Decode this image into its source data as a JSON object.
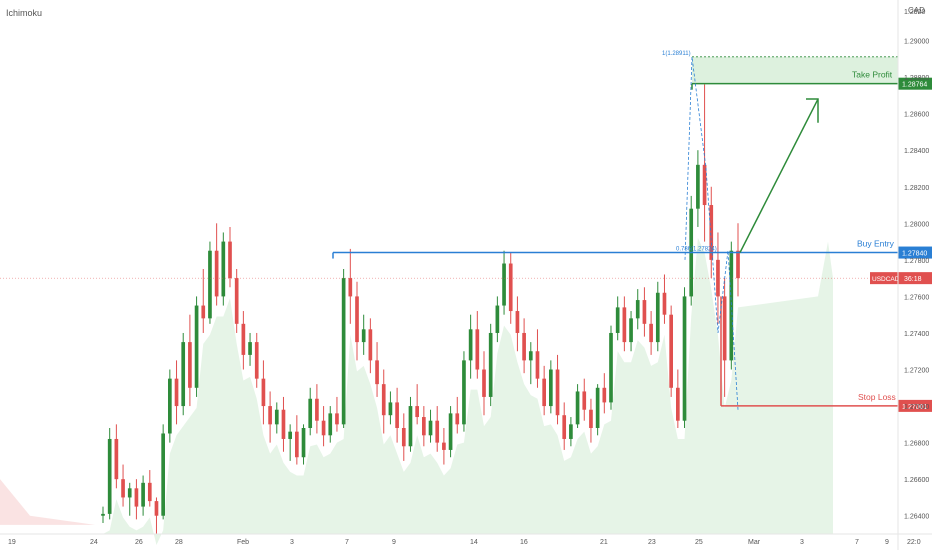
{
  "indicator": "Ichimoku",
  "currency": "CAD",
  "symbol_badge": "USDCAD",
  "countdown": "36:18",
  "colors": {
    "up": "#2e8b3a",
    "down": "#e0504f",
    "entry": "#2a7fd4",
    "take_profit": "#2e8b3a",
    "stop_loss": "#e0504f",
    "cloud_bull": "#c8e6c9",
    "cloud_bear": "#f6c8c8"
  },
  "annotations": {
    "take_profit_text": "Take Profit",
    "take_profit_price": "1.28764",
    "buy_entry_text": "Buy Entry",
    "buy_entry_price": "1.27840",
    "stop_loss_text": "Stop Loss",
    "stop_loss_price": "1.27001",
    "current_price": "USDCAD",
    "fib_top_label": "1(1.28911)",
    "fib_mid_label": "0.786(1.27824)"
  },
  "chart_data": {
    "type": "candlestick",
    "y_axis_ticks": [
      "1.29000",
      "1.28800",
      "1.28600",
      "1.28400",
      "1.28200",
      "1.28000",
      "1.27800",
      "1.27600",
      "1.27400",
      "1.27200",
      "1.27000",
      "1.26800",
      "1.26600",
      "1.26400"
    ],
    "ylim": [
      1.263,
      1.292
    ],
    "y_top_label": "1.2920",
    "x_axis_ticks": [
      "19",
      "24",
      "26",
      "28",
      "Feb",
      "3",
      "7",
      "9",
      "14",
      "16",
      "21",
      "23",
      "25",
      "Mar",
      "3",
      "7",
      "9",
      "22:0"
    ],
    "levels": {
      "take_profit": 1.28764,
      "buy_entry": 1.2784,
      "stop_loss": 1.27001,
      "current": 1.277,
      "fib_top": 1.28911
    },
    "candles": [
      [
        1.264,
        1.2645,
        1.2636,
        1.2641
      ],
      [
        1.2641,
        1.2688,
        1.2638,
        1.2682
      ],
      [
        1.2682,
        1.269,
        1.2655,
        1.266
      ],
      [
        1.266,
        1.2668,
        1.2645,
        1.265
      ],
      [
        1.265,
        1.2658,
        1.264,
        1.2655
      ],
      [
        1.2655,
        1.266,
        1.2638,
        1.2645
      ],
      [
        1.2645,
        1.2662,
        1.264,
        1.2658
      ],
      [
        1.2658,
        1.2665,
        1.2645,
        1.2648
      ],
      [
        1.2648,
        1.265,
        1.263,
        1.264
      ],
      [
        1.264,
        1.269,
        1.2638,
        1.2685
      ],
      [
        1.2685,
        1.272,
        1.268,
        1.2715
      ],
      [
        1.2715,
        1.2725,
        1.269,
        1.27
      ],
      [
        1.27,
        1.274,
        1.2695,
        1.2735
      ],
      [
        1.2735,
        1.275,
        1.27,
        1.271
      ],
      [
        1.271,
        1.276,
        1.2705,
        1.2755
      ],
      [
        1.2755,
        1.2775,
        1.274,
        1.2748
      ],
      [
        1.2748,
        1.279,
        1.2745,
        1.2785
      ],
      [
        1.2785,
        1.28,
        1.2755,
        1.276
      ],
      [
        1.276,
        1.2795,
        1.2755,
        1.279
      ],
      [
        1.279,
        1.2798,
        1.2765,
        1.277
      ],
      [
        1.277,
        1.2775,
        1.274,
        1.2745
      ],
      [
        1.2745,
        1.2752,
        1.272,
        1.2728
      ],
      [
        1.2728,
        1.274,
        1.2722,
        1.2735
      ],
      [
        1.2735,
        1.274,
        1.271,
        1.2715
      ],
      [
        1.2715,
        1.2725,
        1.269,
        1.27
      ],
      [
        1.27,
        1.2708,
        1.268,
        1.269
      ],
      [
        1.269,
        1.2702,
        1.2685,
        1.2698
      ],
      [
        1.2698,
        1.2705,
        1.2675,
        1.2682
      ],
      [
        1.2682,
        1.269,
        1.267,
        1.2686
      ],
      [
        1.2686,
        1.2695,
        1.2668,
        1.2672
      ],
      [
        1.2672,
        1.269,
        1.2668,
        1.2688
      ],
      [
        1.2688,
        1.271,
        1.2684,
        1.2704
      ],
      [
        1.2704,
        1.2712,
        1.2685,
        1.2692
      ],
      [
        1.2692,
        1.27,
        1.2678,
        1.2684
      ],
      [
        1.2684,
        1.27,
        1.268,
        1.2696
      ],
      [
        1.2696,
        1.2705,
        1.2686,
        1.269
      ],
      [
        1.269,
        1.2775,
        1.2688,
        1.277
      ],
      [
        1.277,
        1.2786,
        1.2745,
        1.276
      ],
      [
        1.276,
        1.2768,
        1.2725,
        1.2735
      ],
      [
        1.2735,
        1.275,
        1.2728,
        1.2742
      ],
      [
        1.2742,
        1.2748,
        1.2718,
        1.2725
      ],
      [
        1.2725,
        1.2735,
        1.2705,
        1.2712
      ],
      [
        1.2712,
        1.272,
        1.2685,
        1.2695
      ],
      [
        1.2695,
        1.2708,
        1.269,
        1.2702
      ],
      [
        1.2702,
        1.271,
        1.268,
        1.2688
      ],
      [
        1.2688,
        1.2696,
        1.267,
        1.2678
      ],
      [
        1.2678,
        1.2705,
        1.2675,
        1.27
      ],
      [
        1.27,
        1.2712,
        1.269,
        1.2694
      ],
      [
        1.2694,
        1.27,
        1.2678,
        1.2684
      ],
      [
        1.2684,
        1.2698,
        1.268,
        1.2692
      ],
      [
        1.2692,
        1.27,
        1.2675,
        1.268
      ],
      [
        1.268,
        1.2688,
        1.2668,
        1.2676
      ],
      [
        1.2676,
        1.27,
        1.2672,
        1.2696
      ],
      [
        1.2696,
        1.2705,
        1.2685,
        1.269
      ],
      [
        1.269,
        1.273,
        1.2686,
        1.2725
      ],
      [
        1.2725,
        1.275,
        1.2715,
        1.2742
      ],
      [
        1.2742,
        1.2752,
        1.2715,
        1.272
      ],
      [
        1.272,
        1.273,
        1.2695,
        1.2705
      ],
      [
        1.2705,
        1.2745,
        1.27,
        1.274
      ],
      [
        1.274,
        1.276,
        1.2735,
        1.2755
      ],
      [
        1.2755,
        1.2785,
        1.275,
        1.2778
      ],
      [
        1.2778,
        1.2784,
        1.2745,
        1.2752
      ],
      [
        1.2752,
        1.276,
        1.273,
        1.274
      ],
      [
        1.274,
        1.2748,
        1.2718,
        1.2725
      ],
      [
        1.2725,
        1.2735,
        1.2712,
        1.273
      ],
      [
        1.273,
        1.2742,
        1.271,
        1.2715
      ],
      [
        1.2715,
        1.2722,
        1.2695,
        1.27
      ],
      [
        1.27,
        1.2725,
        1.2696,
        1.272
      ],
      [
        1.272,
        1.2728,
        1.269,
        1.2695
      ],
      [
        1.2695,
        1.2702,
        1.2676,
        1.2682
      ],
      [
        1.2682,
        1.2694,
        1.2678,
        1.269
      ],
      [
        1.269,
        1.2712,
        1.2688,
        1.2708
      ],
      [
        1.2708,
        1.2715,
        1.2692,
        1.2698
      ],
      [
        1.2698,
        1.2704,
        1.268,
        1.2688
      ],
      [
        1.2688,
        1.2712,
        1.2684,
        1.271
      ],
      [
        1.271,
        1.2718,
        1.2696,
        1.2702
      ],
      [
        1.2702,
        1.2744,
        1.2698,
        1.274
      ],
      [
        1.274,
        1.276,
        1.2736,
        1.2754
      ],
      [
        1.2754,
        1.276,
        1.273,
        1.2735
      ],
      [
        1.2735,
        1.2752,
        1.273,
        1.2748
      ],
      [
        1.2748,
        1.2764,
        1.2742,
        1.2758
      ],
      [
        1.2758,
        1.2765,
        1.2738,
        1.2745
      ],
      [
        1.2745,
        1.2752,
        1.2728,
        1.2735
      ],
      [
        1.2735,
        1.2768,
        1.273,
        1.2762
      ],
      [
        1.2762,
        1.2772,
        1.2745,
        1.275
      ],
      [
        1.275,
        1.2755,
        1.2705,
        1.271
      ],
      [
        1.271,
        1.272,
        1.2688,
        1.2692
      ],
      [
        1.2692,
        1.2765,
        1.2688,
        1.276
      ],
      [
        1.276,
        1.2815,
        1.2755,
        1.2808
      ],
      [
        1.2808,
        1.284,
        1.2798,
        1.2832
      ],
      [
        1.2832,
        1.2876,
        1.279,
        1.281
      ],
      [
        1.281,
        1.282,
        1.277,
        1.278
      ],
      [
        1.278,
        1.2795,
        1.2745,
        1.276
      ],
      [
        1.276,
        1.277,
        1.2705,
        1.2725
      ],
      [
        1.2725,
        1.279,
        1.272,
        1.2785
      ],
      [
        1.2785,
        1.28,
        1.276,
        1.277
      ]
    ]
  }
}
